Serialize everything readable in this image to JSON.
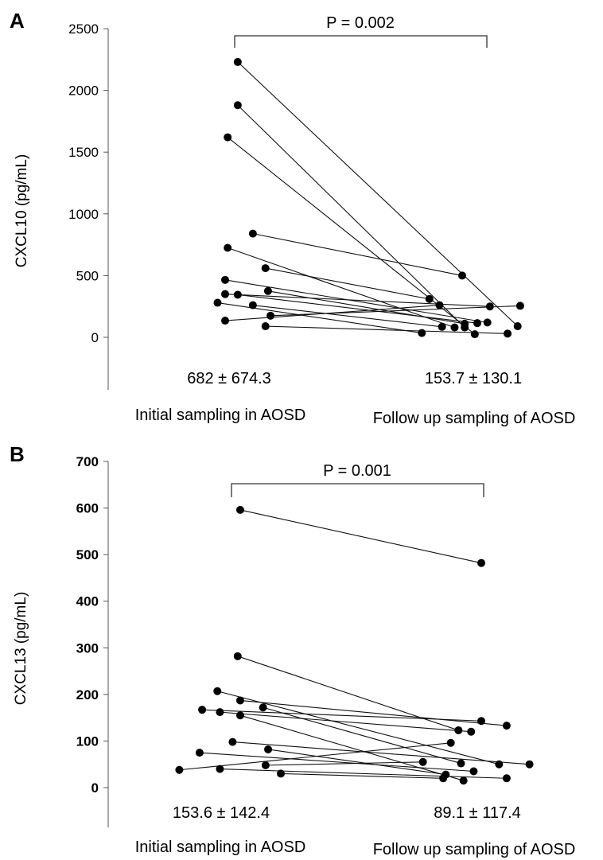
{
  "chart_data": [
    {
      "type": "scatter",
      "panel": "A",
      "ylabel": "CXCL10 (pg/mL)",
      "ylim": [
        -450,
        2500
      ],
      "yticks": [
        0,
        500,
        1000,
        1500,
        2000,
        2500
      ],
      "tick_style": "normal",
      "categories": [
        "Initial sampling in AOSD",
        "Follow up sampling of AOSD"
      ],
      "annotation": "P = 0.002",
      "summary": [
        "682 ± 674.3",
        "153.7 ± 130.1"
      ],
      "pairs": [
        {
          "x1": 0.05,
          "y1": 2230,
          "x2": 1.16,
          "y2": 90
        },
        {
          "x1": 0.05,
          "y1": 1880,
          "x2": 0.95,
          "y2": 80
        },
        {
          "x1": 0.01,
          "y1": 1620,
          "x2": 0.99,
          "y2": 25
        },
        {
          "x1": 0.11,
          "y1": 840,
          "x2": 0.94,
          "y2": 500
        },
        {
          "x1": 0.01,
          "y1": 725,
          "x2": 0.91,
          "y2": 80
        },
        {
          "x1": 0.16,
          "y1": 560,
          "x2": 0.81,
          "y2": 310
        },
        {
          "x1": 0.0,
          "y1": 465,
          "x2": 1.04,
          "y2": 120
        },
        {
          "x1": 0.17,
          "y1": 375,
          "x2": 0.95,
          "y2": 110
        },
        {
          "x1": 0.0,
          "y1": 350,
          "x2": 1.05,
          "y2": 250
        },
        {
          "x1": 0.05,
          "y1": 345,
          "x2": 1.0,
          "y2": 115
        },
        {
          "x1": -0.03,
          "y1": 280,
          "x2": 0.78,
          "y2": 35
        },
        {
          "x1": 0.11,
          "y1": 260,
          "x2": 0.86,
          "y2": 85
        },
        {
          "x1": 0.18,
          "y1": 175,
          "x2": 1.17,
          "y2": 255
        },
        {
          "x1": 0.0,
          "y1": 135,
          "x2": 0.85,
          "y2": 260
        },
        {
          "x1": 0.16,
          "y1": 90,
          "x2": 1.12,
          "y2": 30
        }
      ]
    },
    {
      "type": "scatter",
      "panel": "B",
      "ylabel": "CXCL13 (pg/mL)",
      "ylim": [
        -90,
        700
      ],
      "yticks": [
        0,
        100,
        200,
        300,
        400,
        500,
        600,
        700
      ],
      "tick_style": "bold",
      "categories": [
        "Initial sampling in AOSD",
        "Follow up sampling of AOSD"
      ],
      "annotation": "P = 0.001",
      "summary": [
        "153.6 ± 142.4",
        "89.1 ± 117.4"
      ],
      "pairs": [
        {
          "x1": 0.05,
          "y1": 596,
          "x2": 1.0,
          "y2": 482
        },
        {
          "x1": 0.04,
          "y1": 282,
          "x2": 0.91,
          "y2": 123
        },
        {
          "x1": -0.04,
          "y1": 207,
          "x2": 1.07,
          "y2": 50
        },
        {
          "x1": 0.05,
          "y1": 187,
          "x2": 1.1,
          "y2": 133
        },
        {
          "x1": 0.14,
          "y1": 172,
          "x2": 0.92,
          "y2": 52
        },
        {
          "x1": -0.1,
          "y1": 167,
          "x2": 1.0,
          "y2": 143
        },
        {
          "x1": -0.03,
          "y1": 162,
          "x2": 0.96,
          "y2": 120
        },
        {
          "x1": 0.05,
          "y1": 155,
          "x2": 0.93,
          "y2": 15
        },
        {
          "x1": 0.02,
          "y1": 98,
          "x2": 1.19,
          "y2": 50
        },
        {
          "x1": 0.16,
          "y1": 82,
          "x2": 0.86,
          "y2": 28
        },
        {
          "x1": -0.11,
          "y1": 75,
          "x2": 0.97,
          "y2": 35
        },
        {
          "x1": 0.15,
          "y1": 48,
          "x2": 0.77,
          "y2": 55
        },
        {
          "x1": -0.19,
          "y1": 38,
          "x2": 0.88,
          "y2": 96
        },
        {
          "x1": -0.03,
          "y1": 40,
          "x2": 1.1,
          "y2": 20
        },
        {
          "x1": 0.21,
          "y1": 30,
          "x2": 0.85,
          "y2": 20
        }
      ]
    }
  ]
}
